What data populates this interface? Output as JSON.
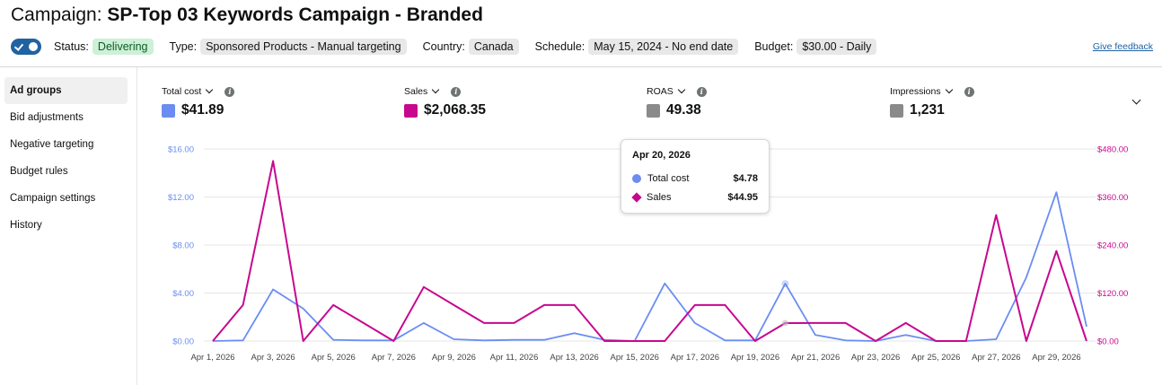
{
  "header": {
    "title_prefix": "Campaign: ",
    "title_name": "SP-Top 03 Keywords Campaign - Branded"
  },
  "status_bar": {
    "status_label": "Status:",
    "status_value": "Delivering",
    "type_label": "Type:",
    "type_value": "Sponsored Products - Manual targeting",
    "country_label": "Country:",
    "country_value": "Canada",
    "schedule_label": "Schedule:",
    "schedule_value": "May 15, 2024 - No end date",
    "budget_label": "Budget:",
    "budget_value": "$30.00 - Daily",
    "feedback_link": "Give feedback",
    "toggle_on": true
  },
  "sidebar": {
    "items": [
      {
        "label": "Ad groups",
        "active": true
      },
      {
        "label": "Bid adjustments",
        "active": false
      },
      {
        "label": "Negative targeting",
        "active": false
      },
      {
        "label": "Budget rules",
        "active": false
      },
      {
        "label": "Campaign settings",
        "active": false
      },
      {
        "label": "History",
        "active": false
      }
    ]
  },
  "metrics": [
    {
      "label": "Total cost",
      "value": "$41.89",
      "color": "#6b8df2"
    },
    {
      "label": "Sales",
      "value": "$2,068.35",
      "color": "#c7088f"
    },
    {
      "label": "ROAS",
      "value": "49.38",
      "color": "#8a8a8a"
    },
    {
      "label": "Impressions",
      "value": "1,231",
      "color": "#8a8a8a"
    }
  ],
  "tooltip": {
    "date": "Apr 20, 2026",
    "rows": [
      {
        "name": "Total cost",
        "value": "$4.78"
      },
      {
        "name": "Sales",
        "value": "$44.95"
      }
    ]
  },
  "chart_data": {
    "type": "line",
    "x": [
      "Apr 1",
      "Apr 2",
      "Apr 3",
      "Apr 4",
      "Apr 5",
      "Apr 6",
      "Apr 7",
      "Apr 8",
      "Apr 9",
      "Apr 10",
      "Apr 11",
      "Apr 12",
      "Apr 13",
      "Apr 14",
      "Apr 15",
      "Apr 16",
      "Apr 17",
      "Apr 18",
      "Apr 19",
      "Apr 20",
      "Apr 21",
      "Apr 22",
      "Apr 23",
      "Apr 24",
      "Apr 25",
      "Apr 26",
      "Apr 27",
      "Apr 28",
      "Apr 29",
      "Apr 30"
    ],
    "x_tick_labels": [
      "Apr 1, 2026",
      "Apr 3, 2026",
      "Apr 5, 2026",
      "Apr 7, 2026",
      "Apr 9, 2026",
      "Apr 11, 2026",
      "Apr 13, 2026",
      "Apr 15, 2026",
      "Apr 17, 2026",
      "Apr 19, 2026",
      "Apr 21, 2026",
      "Apr 23, 2026",
      "Apr 25, 2026",
      "Apr 27, 2026",
      "Apr 29, 2026"
    ],
    "y_left": {
      "min": 0,
      "max": 16,
      "ticks": [
        "$0.00",
        "$4.00",
        "$8.00",
        "$12.00",
        "$16.00"
      ]
    },
    "y_right": {
      "min": 0,
      "max": 480,
      "ticks": [
        "$0.00",
        "$120.00",
        "$240.00",
        "$360.00",
        "$480.00"
      ]
    },
    "series": [
      {
        "name": "Total cost",
        "axis": "left",
        "color": "#6b8df2",
        "values": [
          0,
          0.05,
          4.3,
          2.7,
          0.1,
          0.05,
          0.05,
          1.5,
          0.15,
          0.05,
          0.1,
          0.1,
          0.65,
          0.1,
          0,
          4.8,
          1.5,
          0.05,
          0.05,
          4.78,
          0.5,
          0.05,
          0,
          0.5,
          0,
          0,
          0.15,
          5.3,
          12.4,
          1.2
        ]
      },
      {
        "name": "Sales",
        "axis": "right",
        "color": "#c7088f",
        "values": [
          0,
          90,
          450,
          0,
          90,
          45,
          0,
          135,
          90,
          45,
          45,
          90,
          90,
          0,
          0,
          0,
          90,
          90,
          0,
          44.95,
          45,
          45,
          0,
          45,
          0,
          0,
          315,
          0,
          225,
          0
        ]
      }
    ],
    "grid": true,
    "legend": "none"
  }
}
